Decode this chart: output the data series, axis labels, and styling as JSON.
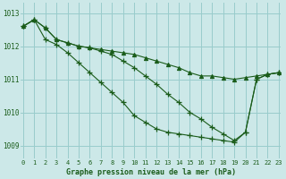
{
  "title": "Graphe pression niveau de la mer (hPa)",
  "bg_color": "#cce8e8",
  "grid_color": "#99cccc",
  "line_color": "#1a5c1a",
  "xlim": [
    -0.2,
    23.2
  ],
  "ylim": [
    1008.6,
    1013.3
  ],
  "yticks": [
    1009,
    1010,
    1011,
    1012,
    1013
  ],
  "xticks": [
    0,
    1,
    2,
    3,
    4,
    5,
    6,
    7,
    8,
    9,
    10,
    11,
    12,
    13,
    14,
    15,
    16,
    17,
    18,
    19,
    20,
    21,
    22,
    23
  ],
  "series_shallow": {
    "x": [
      0,
      1,
      2,
      3,
      4,
      5,
      6,
      7,
      8,
      9,
      10,
      11,
      12,
      13,
      14,
      15,
      16,
      17,
      18,
      19,
      20,
      21,
      22,
      23
    ],
    "y": [
      1012.6,
      1012.8,
      1012.55,
      1012.2,
      1012.1,
      1012.0,
      1011.95,
      1011.9,
      1011.85,
      1011.8,
      1011.75,
      1011.65,
      1011.55,
      1011.45,
      1011.35,
      1011.2,
      1011.1,
      1011.1,
      1011.05,
      1011.0,
      1011.05,
      1011.1,
      1011.15,
      1011.2
    ],
    "marker": "^",
    "markersize": 3.0
  },
  "series_medium": {
    "x": [
      0,
      1,
      2,
      3,
      4,
      5,
      6,
      7,
      8,
      9,
      10,
      11,
      12,
      13,
      14,
      15,
      16,
      17,
      18,
      19,
      20,
      21,
      22,
      23
    ],
    "y": [
      1012.6,
      1012.8,
      1012.55,
      1012.2,
      1012.1,
      1012.0,
      1011.95,
      1011.85,
      1011.75,
      1011.55,
      1011.35,
      1011.1,
      1010.85,
      1010.55,
      1010.3,
      1010.0,
      1009.8,
      1009.55,
      1009.35,
      1009.15,
      1009.4,
      1011.0,
      1011.15,
      1011.2
    ],
    "marker": "+",
    "markersize": 4.5
  },
  "series_steep": {
    "x": [
      0,
      1,
      2,
      3,
      4,
      5,
      6,
      7,
      8,
      9,
      10,
      11,
      12,
      13,
      14,
      15,
      16,
      17,
      18,
      19,
      20,
      21,
      22,
      23
    ],
    "y": [
      1012.6,
      1012.8,
      1012.2,
      1012.05,
      1011.8,
      1011.5,
      1011.2,
      1010.9,
      1010.6,
      1010.3,
      1009.9,
      1009.7,
      1009.5,
      1009.4,
      1009.35,
      1009.3,
      1009.25,
      1009.2,
      1009.15,
      1009.1,
      1009.4,
      1011.0,
      1011.15,
      1011.2
    ],
    "marker": "+",
    "markersize": 4.5
  }
}
